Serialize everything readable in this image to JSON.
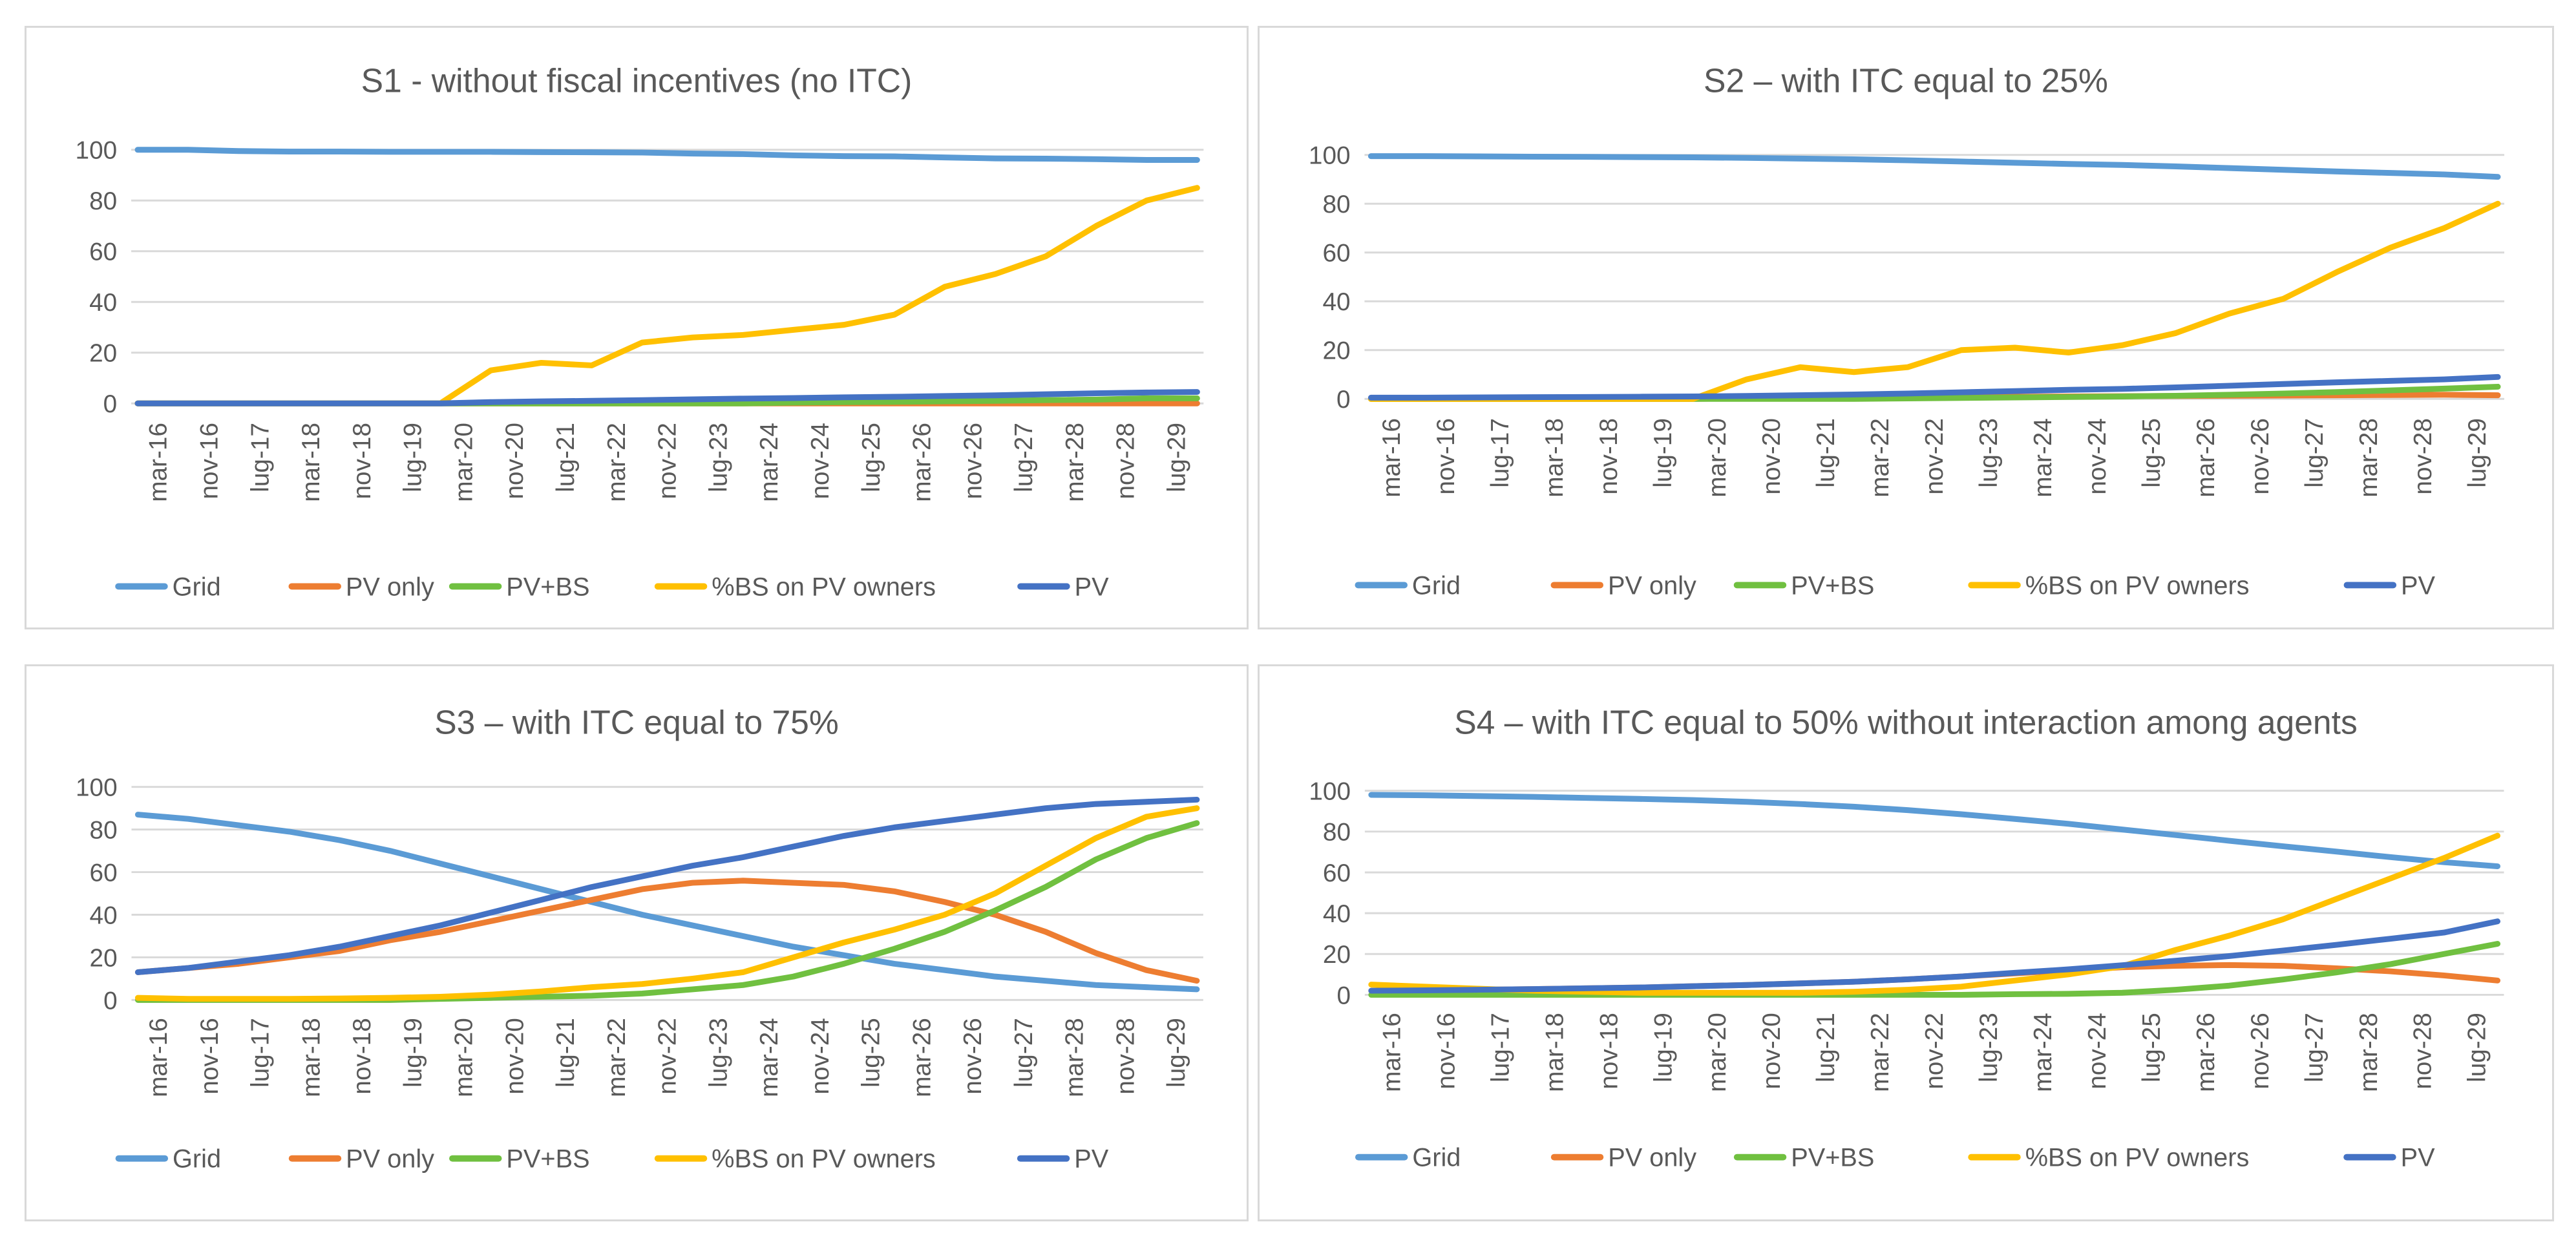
{
  "colors": {
    "Grid": "#5b9bd5",
    "PV only": "#ed7d31",
    "PV+BS": "#70c040",
    "%BS on PV owners": "#ffc000",
    "PV": "#4472c4"
  },
  "chart_data": [
    {
      "type": "line",
      "title": "S1 - without fiscal incentives (no ITC)",
      "x_tick_labels": [
        "mar-16",
        "nov-16",
        "lug-17",
        "mar-18",
        "nov-18",
        "lug-19",
        "mar-20",
        "nov-20",
        "lug-21",
        "mar-22",
        "nov-22",
        "lug-23",
        "mar-24",
        "nov-24",
        "lug-25",
        "mar-26",
        "nov-26",
        "lug-27",
        "mar-28",
        "nov-28",
        "lug-29"
      ],
      "y_ticks": [
        0,
        20,
        40,
        60,
        80,
        100
      ],
      "ylim": [
        0,
        100
      ],
      "legend": [
        "Grid",
        "PV only",
        "PV+BS",
        "%BS on PV owners",
        "PV"
      ],
      "series": [
        {
          "name": "Grid",
          "values": [
            100,
            100,
            99.5,
            99.3,
            99.3,
            99.2,
            99.2,
            99.2,
            99.1,
            99,
            98.9,
            98.5,
            98.3,
            97.8,
            97.5,
            97.4,
            97,
            96.6,
            96.5,
            96.3,
            96,
            96
          ]
        },
        {
          "name": "PV only",
          "values": [
            0,
            0,
            0,
            0,
            0,
            0,
            0,
            0,
            0,
            0,
            0,
            0,
            0,
            0,
            0,
            0,
            0,
            0,
            0,
            0,
            0,
            0
          ]
        },
        {
          "name": "PV+BS",
          "values": [
            0,
            0,
            0,
            0,
            0,
            0,
            0,
            0,
            0,
            0,
            0,
            0,
            0,
            0.3,
            0.5,
            0.6,
            0.8,
            1,
            1.3,
            1.5,
            2,
            2
          ]
        },
        {
          "name": "%BS on PV owners",
          "values": [
            0,
            0,
            0,
            0,
            0,
            0,
            0,
            13,
            16,
            15,
            24,
            26,
            27,
            29,
            31,
            35,
            46,
            51,
            58,
            70,
            80,
            85
          ]
        },
        {
          "name": "PV",
          "values": [
            0,
            0,
            0,
            0,
            0,
            0,
            0,
            0.5,
            0.8,
            1,
            1.3,
            1.6,
            1.9,
            2.1,
            2.4,
            2.6,
            2.9,
            3.2,
            3.6,
            4,
            4.3,
            4.5
          ]
        }
      ]
    },
    {
      "type": "line",
      "title": "S2 – with ITC equal to 25%",
      "x_tick_labels": [
        "mar-16",
        "nov-16",
        "lug-17",
        "mar-18",
        "nov-18",
        "lug-19",
        "mar-20",
        "nov-20",
        "lug-21",
        "mar-22",
        "nov-22",
        "lug-23",
        "mar-24",
        "nov-24",
        "lug-25",
        "mar-26",
        "nov-26",
        "lug-27",
        "mar-28",
        "nov-28",
        "lug-29"
      ],
      "y_ticks": [
        0,
        20,
        40,
        60,
        80,
        100
      ],
      "ylim": [
        0,
        100
      ],
      "legend": [
        "Grid",
        "PV only",
        "PV+BS",
        "%BS on PV owners",
        "PV"
      ],
      "series": [
        {
          "name": "Grid",
          "values": [
            99.5,
            99.5,
            99.4,
            99.3,
            99.2,
            99.1,
            99,
            98.8,
            98.5,
            98.2,
            97.8,
            97.3,
            96.8,
            96.3,
            95.9,
            95.3,
            94.6,
            93.9,
            93.2,
            92.6,
            92,
            91
          ]
        },
        {
          "name": "PV only",
          "values": [
            0,
            0,
            0,
            0,
            0,
            0,
            0,
            0.2,
            0.4,
            0.5,
            0.6,
            0.8,
            0.9,
            1,
            1.1,
            1.2,
            1.3,
            1.4,
            1.5,
            1.6,
            1.7,
            1.5
          ]
        },
        {
          "name": "PV+BS",
          "values": [
            0,
            0,
            0,
            0,
            0,
            0,
            0,
            0,
            0,
            0,
            0.2,
            0.4,
            0.6,
            0.8,
            1,
            1.3,
            1.7,
            2.2,
            2.8,
            3.5,
            4.2,
            5
          ]
        },
        {
          "name": "%BS on PV owners",
          "values": [
            0,
            0,
            0,
            0,
            0,
            0,
            0,
            8,
            13,
            11,
            13,
            20,
            21,
            19,
            22,
            27,
            35,
            41,
            52,
            62,
            70,
            80
          ]
        },
        {
          "name": "PV",
          "values": [
            0.5,
            0.5,
            0.6,
            0.7,
            0.8,
            0.9,
            1,
            1.2,
            1.5,
            1.8,
            2.2,
            2.7,
            3.2,
            3.7,
            4.1,
            4.7,
            5.4,
            6.1,
            6.8,
            7.4,
            8,
            9
          ]
        }
      ]
    },
    {
      "type": "line",
      "title": "S3 – with ITC equal to 75%",
      "x_tick_labels": [
        "mar-16",
        "nov-16",
        "lug-17",
        "mar-18",
        "nov-18",
        "lug-19",
        "mar-20",
        "nov-20",
        "lug-21",
        "mar-22",
        "nov-22",
        "lug-23",
        "mar-24",
        "nov-24",
        "lug-25",
        "mar-26",
        "nov-26",
        "lug-27",
        "mar-28",
        "nov-28",
        "lug-29"
      ],
      "y_ticks": [
        0,
        20,
        40,
        60,
        80,
        100
      ],
      "ylim": [
        0,
        100
      ],
      "legend": [
        "Grid",
        "PV only",
        "PV+BS",
        "%BS on PV owners",
        "PV"
      ],
      "series": [
        {
          "name": "Grid",
          "values": [
            87,
            85,
            82,
            79,
            75,
            70,
            64,
            58,
            52,
            46,
            40,
            35,
            30,
            25,
            21,
            17,
            14,
            11,
            9,
            7,
            6,
            5
          ]
        },
        {
          "name": "PV only",
          "values": [
            13,
            15,
            17,
            20,
            23,
            28,
            32,
            37,
            42,
            47,
            52,
            55,
            56,
            55,
            54,
            51,
            46,
            40,
            32,
            22,
            14,
            9
          ]
        },
        {
          "name": "PV+BS",
          "values": [
            0,
            0,
            0,
            0,
            0,
            0,
            0.5,
            1,
            1.5,
            2,
            3,
            5,
            7,
            11,
            17,
            24,
            32,
            42,
            53,
            66,
            76,
            83
          ]
        },
        {
          "name": "%BS on PV owners",
          "values": [
            1,
            0.5,
            0.5,
            0.5,
            0.7,
            1,
            1.5,
            2.5,
            4,
            6,
            7.5,
            10,
            13,
            20,
            27,
            33,
            40,
            50,
            63,
            76,
            86,
            90
          ]
        },
        {
          "name": "PV",
          "values": [
            13,
            15,
            18,
            21,
            25,
            30,
            35,
            41,
            47,
            53,
            58,
            63,
            67,
            72,
            77,
            81,
            84,
            87,
            90,
            92,
            93,
            94
          ]
        }
      ]
    },
    {
      "type": "line",
      "title": "S4 – with ITC equal to 50% without interaction among agents",
      "x_tick_labels": [
        "mar-16",
        "nov-16",
        "lug-17",
        "mar-18",
        "nov-18",
        "lug-19",
        "mar-20",
        "nov-20",
        "lug-21",
        "mar-22",
        "nov-22",
        "lug-23",
        "mar-24",
        "nov-24",
        "lug-25",
        "mar-26",
        "nov-26",
        "lug-27",
        "mar-28",
        "nov-28",
        "lug-29"
      ],
      "y_ticks": [
        0,
        20,
        40,
        60,
        80,
        100
      ],
      "ylim": [
        0,
        100
      ],
      "legend": [
        "Grid",
        "PV only",
        "PV+BS",
        "%BS on PV owners",
        "PV"
      ],
      "series": [
        {
          "name": "Grid",
          "values": [
            98,
            97.8,
            97.4,
            97,
            96.5,
            96,
            95.4,
            94.6,
            93.5,
            92.2,
            90.5,
            88.5,
            86.2,
            83.8,
            81,
            78.3,
            75.5,
            72.8,
            70.2,
            67.5,
            65,
            63
          ]
        },
        {
          "name": "PV only",
          "values": [
            2,
            2.2,
            2.5,
            2.8,
            3.2,
            3.6,
            4.2,
            4.8,
            5.6,
            6.4,
            7.6,
            9,
            10.5,
            12,
            13.5,
            14.2,
            14.6,
            14.2,
            13,
            11.5,
            9.5,
            7
          ]
        },
        {
          "name": "PV+BS",
          "values": [
            0,
            0,
            0,
            0,
            0,
            0,
            0,
            0,
            0,
            0,
            0,
            0,
            0.3,
            0.5,
            1,
            2.5,
            4.5,
            7.5,
            11,
            15,
            20,
            25
          ]
        },
        {
          "name": "%BS on PV owners",
          "values": [
            5,
            4,
            3,
            2,
            1.5,
            1,
            1,
            1,
            1,
            1.5,
            2.5,
            4,
            7,
            10,
            14,
            22,
            29,
            37,
            47,
            57,
            67,
            78
          ]
        },
        {
          "name": "PV",
          "values": [
            2,
            2.2,
            2.5,
            2.8,
            3.2,
            3.6,
            4.2,
            4.8,
            5.6,
            6.4,
            7.6,
            9,
            10.8,
            12.5,
            14.5,
            16.7,
            19,
            21.7,
            24.5,
            27.5,
            30.5,
            36
          ]
        }
      ]
    }
  ]
}
